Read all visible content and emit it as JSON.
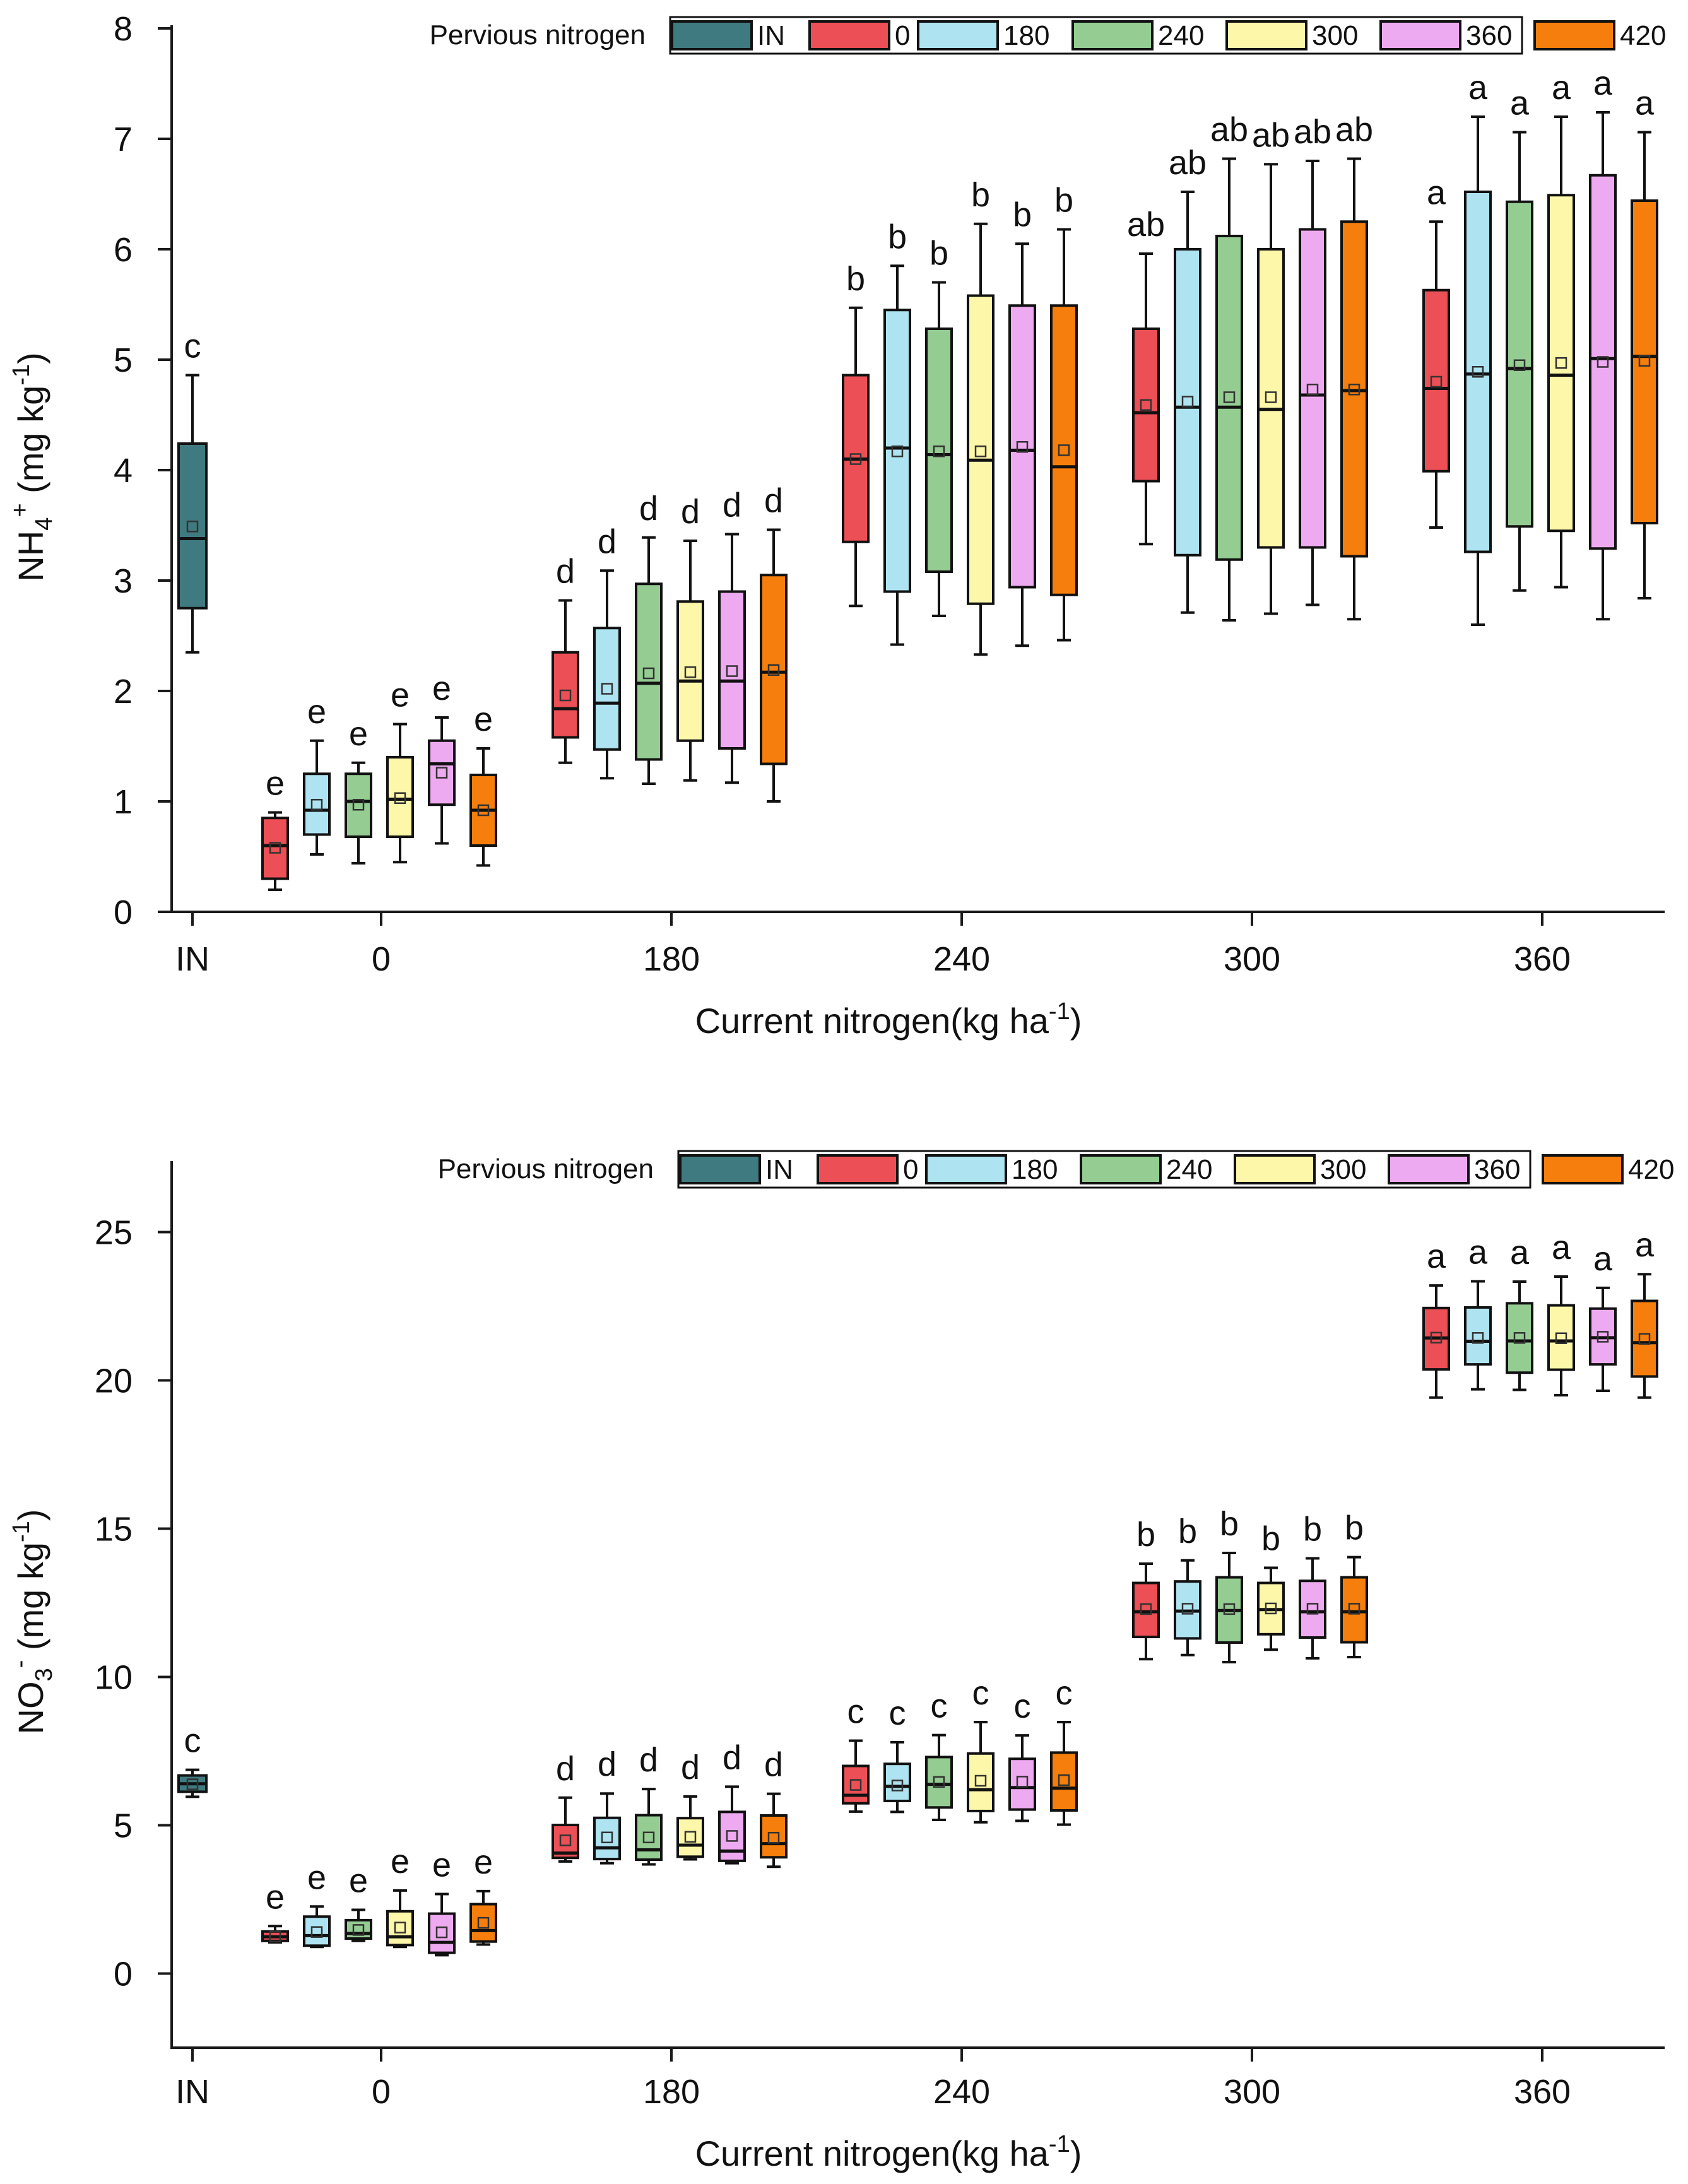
{
  "colors": {
    "IN": "#3f7a80",
    "0": "#ec4f55",
    "180": "#aee4f1",
    "240": "#94cc92",
    "300": "#fdf7a9",
    "360": "#eeaaf0",
    "420": "#f57e0c"
  },
  "chart_data": [
    {
      "type": "box",
      "ylabel_main": "NH",
      "ylabel_sub": "4",
      "ylabel_sup": "+",
      "ylabel_unit": " (mg kg",
      "ylabel_unit_sup": "-1",
      "ylabel_close": ")",
      "xlabel_main": "Current nitrogen(kg ha",
      "xlabel_sup": "-1",
      "xlabel_close": ")",
      "ylim": [
        0,
        8
      ],
      "yticks": [
        0,
        1,
        2,
        3,
        4,
        5,
        6,
        7,
        8
      ],
      "legend_title": "Pervious nitrogen",
      "legend_entries": [
        "IN",
        "0",
        "180",
        "240",
        "300",
        "360",
        "420"
      ],
      "groups": [
        {
          "label": "IN",
          "boxes": [
            {
              "series": "IN",
              "min": 2.35,
              "q1": 2.75,
              "median": 3.38,
              "q3": 4.24,
              "max": 4.86,
              "mean": 3.49,
              "sig": "c"
            }
          ]
        },
        {
          "label": "0",
          "boxes": [
            {
              "series": "0",
              "min": 0.2,
              "q1": 0.3,
              "median": 0.6,
              "q3": 0.85,
              "max": 0.9,
              "mean": 0.58,
              "sig": "e"
            },
            {
              "series": "180",
              "min": 0.52,
              "q1": 0.7,
              "median": 0.92,
              "q3": 1.25,
              "max": 1.55,
              "mean": 0.97,
              "sig": "e"
            },
            {
              "series": "240",
              "min": 0.44,
              "q1": 0.68,
              "median": 1.0,
              "q3": 1.25,
              "max": 1.35,
              "mean": 0.97,
              "sig": "e"
            },
            {
              "series": "300",
              "min": 0.45,
              "q1": 0.68,
              "median": 1.02,
              "q3": 1.4,
              "max": 1.7,
              "mean": 1.03,
              "sig": "e"
            },
            {
              "series": "360",
              "min": 0.62,
              "q1": 0.97,
              "median": 1.34,
              "q3": 1.55,
              "max": 1.76,
              "mean": 1.26,
              "sig": "e"
            },
            {
              "series": "420",
              "min": 0.42,
              "q1": 0.6,
              "median": 0.92,
              "q3": 1.24,
              "max": 1.48,
              "mean": 0.92,
              "sig": "e"
            }
          ]
        },
        {
          "label": "180",
          "boxes": [
            {
              "series": "0",
              "min": 1.35,
              "q1": 1.58,
              "median": 1.84,
              "q3": 2.35,
              "max": 2.82,
              "mean": 1.96,
              "sig": "d"
            },
            {
              "series": "180",
              "min": 1.21,
              "q1": 1.47,
              "median": 1.89,
              "q3": 2.57,
              "max": 3.09,
              "mean": 2.02,
              "sig": "d"
            },
            {
              "series": "240",
              "min": 1.16,
              "q1": 1.38,
              "median": 2.07,
              "q3": 2.97,
              "max": 3.39,
              "mean": 2.16,
              "sig": "d"
            },
            {
              "series": "300",
              "min": 1.19,
              "q1": 1.55,
              "median": 2.09,
              "q3": 2.81,
              "max": 3.36,
              "mean": 2.17,
              "sig": "d"
            },
            {
              "series": "360",
              "min": 1.17,
              "q1": 1.48,
              "median": 2.09,
              "q3": 2.9,
              "max": 3.42,
              "mean": 2.18,
              "sig": "d"
            },
            {
              "series": "420",
              "min": 1.0,
              "q1": 1.34,
              "median": 2.17,
              "q3": 3.05,
              "max": 3.46,
              "mean": 2.19,
              "sig": "d"
            }
          ]
        },
        {
          "label": "240",
          "boxes": [
            {
              "series": "0",
              "min": 2.77,
              "q1": 3.35,
              "median": 4.1,
              "q3": 4.86,
              "max": 5.47,
              "mean": 4.1,
              "sig": "b"
            },
            {
              "series": "180",
              "min": 2.42,
              "q1": 2.9,
              "median": 4.2,
              "q3": 5.45,
              "max": 5.85,
              "mean": 4.17,
              "sig": "b"
            },
            {
              "series": "240",
              "min": 2.68,
              "q1": 3.08,
              "median": 4.14,
              "q3": 5.28,
              "max": 5.7,
              "mean": 4.17,
              "sig": "b"
            },
            {
              "series": "300",
              "min": 2.33,
              "q1": 2.79,
              "median": 4.09,
              "q3": 5.58,
              "max": 6.23,
              "mean": 4.17,
              "sig": "b"
            },
            {
              "series": "360",
              "min": 2.41,
              "q1": 2.94,
              "median": 4.18,
              "q3": 5.49,
              "max": 6.05,
              "mean": 4.21,
              "sig": "b"
            },
            {
              "series": "420",
              "min": 2.46,
              "q1": 2.87,
              "median": 4.03,
              "q3": 5.49,
              "max": 6.18,
              "mean": 4.18,
              "sig": "b"
            }
          ]
        },
        {
          "label": "300",
          "boxes": [
            {
              "series": "0",
              "min": 3.33,
              "q1": 3.9,
              "median": 4.52,
              "q3": 5.28,
              "max": 5.96,
              "mean": 4.59,
              "sig": "ab"
            },
            {
              "series": "180",
              "min": 2.71,
              "q1": 3.23,
              "median": 4.57,
              "q3": 6.0,
              "max": 6.52,
              "mean": 4.62,
              "sig": "ab"
            },
            {
              "series": "240",
              "min": 2.64,
              "q1": 3.19,
              "median": 4.57,
              "q3": 6.12,
              "max": 6.82,
              "mean": 4.66,
              "sig": "ab"
            },
            {
              "series": "300",
              "min": 2.7,
              "q1": 3.3,
              "median": 4.55,
              "q3": 6.0,
              "max": 6.77,
              "mean": 4.66,
              "sig": "ab"
            },
            {
              "series": "360",
              "min": 2.78,
              "q1": 3.3,
              "median": 4.68,
              "q3": 6.18,
              "max": 6.8,
              "mean": 4.73,
              "sig": "ab"
            },
            {
              "series": "420",
              "min": 2.65,
              "q1": 3.22,
              "median": 4.72,
              "q3": 6.25,
              "max": 6.82,
              "mean": 4.73,
              "sig": "ab"
            }
          ]
        },
        {
          "label": "360",
          "boxes": [
            {
              "series": "0",
              "min": 3.48,
              "q1": 3.99,
              "median": 4.74,
              "q3": 5.63,
              "max": 6.25,
              "mean": 4.8,
              "sig": "a"
            },
            {
              "series": "180",
              "min": 2.6,
              "q1": 3.26,
              "median": 4.87,
              "q3": 6.52,
              "max": 7.2,
              "mean": 4.89,
              "sig": "a"
            },
            {
              "series": "240",
              "min": 2.91,
              "q1": 3.49,
              "median": 4.92,
              "q3": 6.43,
              "max": 7.06,
              "mean": 4.95,
              "sig": "a"
            },
            {
              "series": "300",
              "min": 2.94,
              "q1": 3.45,
              "median": 4.86,
              "q3": 6.49,
              "max": 7.2,
              "mean": 4.97,
              "sig": "a"
            },
            {
              "series": "360",
              "min": 2.65,
              "q1": 3.29,
              "median": 5.01,
              "q3": 6.67,
              "max": 7.24,
              "mean": 4.98,
              "sig": "a"
            },
            {
              "series": "420",
              "min": 2.84,
              "q1": 3.52,
              "median": 5.03,
              "q3": 6.44,
              "max": 7.06,
              "mean": 4.99,
              "sig": "a"
            }
          ]
        }
      ]
    },
    {
      "type": "box",
      "ylabel_main": "NO",
      "ylabel_sub": "3",
      "ylabel_sup": "-",
      "ylabel_unit": " (mg kg",
      "ylabel_unit_sup": "-1",
      "ylabel_close": ")",
      "xlabel_main": "Current nitrogen(kg ha",
      "xlabel_sup": "-1",
      "xlabel_close": ")",
      "ylim": [
        -2.5,
        27.5
      ],
      "yticks": [
        0,
        5,
        10,
        15,
        20,
        25
      ],
      "legend_title": "Pervious nitrogen",
      "legend_entries": [
        "IN",
        "0",
        "180",
        "240",
        "300",
        "360",
        "420"
      ],
      "groups": [
        {
          "label": "IN",
          "boxes": [
            {
              "series": "IN",
              "min": 5.96,
              "q1": 6.13,
              "median": 6.4,
              "q3": 6.68,
              "max": 6.87,
              "mean": 6.38,
              "sig": "c"
            }
          ]
        },
        {
          "label": "0",
          "boxes": [
            {
              "series": "0",
              "min": 1.05,
              "q1": 1.1,
              "median": 1.24,
              "q3": 1.42,
              "max": 1.6,
              "mean": 1.25,
              "sig": "e"
            },
            {
              "series": "180",
              "min": 0.9,
              "q1": 0.94,
              "median": 1.28,
              "q3": 1.92,
              "max": 2.26,
              "mean": 1.4,
              "sig": "e"
            },
            {
              "series": "240",
              "min": 1.1,
              "q1": 1.18,
              "median": 1.35,
              "q3": 1.8,
              "max": 2.15,
              "mean": 1.47,
              "sig": "e"
            },
            {
              "series": "300",
              "min": 0.9,
              "q1": 0.96,
              "median": 1.24,
              "q3": 2.1,
              "max": 2.8,
              "mean": 1.55,
              "sig": "e"
            },
            {
              "series": "360",
              "min": 0.62,
              "q1": 0.7,
              "median": 1.05,
              "q3": 2.02,
              "max": 2.68,
              "mean": 1.39,
              "sig": "e"
            },
            {
              "series": "420",
              "min": 0.98,
              "q1": 1.08,
              "median": 1.45,
              "q3": 2.34,
              "max": 2.78,
              "mean": 1.71,
              "sig": "e"
            }
          ]
        },
        {
          "label": "180",
          "boxes": [
            {
              "series": "0",
              "min": 3.78,
              "q1": 3.9,
              "median": 4.06,
              "q3": 5.01,
              "max": 5.93,
              "mean": 4.49,
              "sig": "d"
            },
            {
              "series": "180",
              "min": 3.72,
              "q1": 3.86,
              "median": 4.24,
              "q3": 5.25,
              "max": 6.07,
              "mean": 4.59,
              "sig": "d"
            },
            {
              "series": "240",
              "min": 3.68,
              "q1": 3.84,
              "median": 4.17,
              "q3": 5.34,
              "max": 6.22,
              "mean": 4.59,
              "sig": "d"
            },
            {
              "series": "300",
              "min": 3.85,
              "q1": 3.94,
              "median": 4.33,
              "q3": 5.24,
              "max": 5.97,
              "mean": 4.61,
              "sig": "d"
            },
            {
              "series": "360",
              "min": 3.72,
              "q1": 3.8,
              "median": 4.13,
              "q3": 5.45,
              "max": 6.3,
              "mean": 4.64,
              "sig": "d"
            },
            {
              "series": "420",
              "min": 3.6,
              "q1": 3.92,
              "median": 4.38,
              "q3": 5.33,
              "max": 6.06,
              "mean": 4.58,
              "sig": "d"
            }
          ]
        },
        {
          "label": "240",
          "boxes": [
            {
              "series": "0",
              "min": 5.46,
              "q1": 5.74,
              "median": 6.01,
              "q3": 7.0,
              "max": 7.85,
              "mean": 6.36,
              "sig": "c"
            },
            {
              "series": "180",
              "min": 5.45,
              "q1": 5.82,
              "median": 6.31,
              "q3": 7.07,
              "max": 7.8,
              "mean": 6.34,
              "sig": "c"
            },
            {
              "series": "240",
              "min": 5.18,
              "q1": 5.6,
              "median": 6.38,
              "q3": 7.3,
              "max": 8.04,
              "mean": 6.46,
              "sig": "c"
            },
            {
              "series": "300",
              "min": 5.1,
              "q1": 5.48,
              "median": 6.2,
              "q3": 7.42,
              "max": 8.48,
              "mean": 6.5,
              "sig": "c"
            },
            {
              "series": "360",
              "min": 5.15,
              "q1": 5.53,
              "median": 6.27,
              "q3": 7.24,
              "max": 8.03,
              "mean": 6.47,
              "sig": "c"
            },
            {
              "series": "420",
              "min": 5.02,
              "q1": 5.5,
              "median": 6.25,
              "q3": 7.45,
              "max": 8.48,
              "mean": 6.52,
              "sig": "c"
            }
          ]
        },
        {
          "label": "300",
          "boxes": [
            {
              "series": "0",
              "min": 10.6,
              "q1": 11.35,
              "median": 12.2,
              "q3": 13.17,
              "max": 13.82,
              "mean": 12.29,
              "sig": "b"
            },
            {
              "series": "180",
              "min": 10.74,
              "q1": 11.3,
              "median": 12.22,
              "q3": 13.22,
              "max": 13.93,
              "mean": 12.3,
              "sig": "b"
            },
            {
              "series": "240",
              "min": 10.5,
              "q1": 11.16,
              "median": 12.24,
              "q3": 13.36,
              "max": 14.18,
              "mean": 12.29,
              "sig": "b"
            },
            {
              "series": "300",
              "min": 10.92,
              "q1": 11.44,
              "median": 12.27,
              "q3": 13.17,
              "max": 13.68,
              "mean": 12.31,
              "sig": "b"
            },
            {
              "series": "360",
              "min": 10.63,
              "q1": 11.33,
              "median": 12.2,
              "q3": 13.24,
              "max": 14.0,
              "mean": 12.3,
              "sig": "b"
            },
            {
              "series": "420",
              "min": 10.67,
              "q1": 11.17,
              "median": 12.2,
              "q3": 13.36,
              "max": 14.04,
              "mean": 12.3,
              "sig": "b"
            }
          ]
        },
        {
          "label": "360",
          "boxes": [
            {
              "series": "0",
              "min": 19.42,
              "q1": 20.37,
              "median": 21.43,
              "q3": 22.44,
              "max": 23.2,
              "mean": 21.44,
              "sig": "a"
            },
            {
              "series": "180",
              "min": 19.7,
              "q1": 20.54,
              "median": 21.32,
              "q3": 22.46,
              "max": 23.34,
              "mean": 21.43,
              "sig": "a"
            },
            {
              "series": "240",
              "min": 19.68,
              "q1": 20.26,
              "median": 21.33,
              "q3": 22.6,
              "max": 23.33,
              "mean": 21.43,
              "sig": "a"
            },
            {
              "series": "300",
              "min": 19.5,
              "q1": 20.36,
              "median": 21.33,
              "q3": 22.53,
              "max": 23.5,
              "mean": 21.42,
              "sig": "a"
            },
            {
              "series": "360",
              "min": 19.65,
              "q1": 20.54,
              "median": 21.44,
              "q3": 22.42,
              "max": 23.12,
              "mean": 21.47,
              "sig": "a"
            },
            {
              "series": "420",
              "min": 19.42,
              "q1": 20.13,
              "median": 21.27,
              "q3": 22.68,
              "max": 23.58,
              "mean": 21.4,
              "sig": "a"
            }
          ]
        }
      ]
    }
  ]
}
